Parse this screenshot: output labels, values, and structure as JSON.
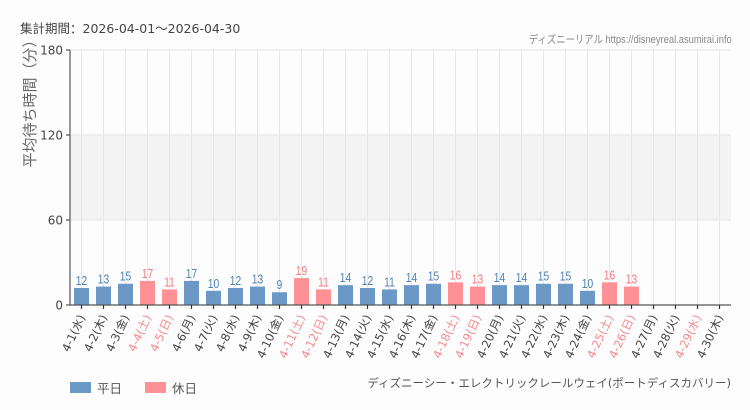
{
  "header": {
    "period": "集計期間：2026-04-01〜2026-04-30",
    "source": "ディズニーリアル https://disneyreal.asumirai.info"
  },
  "colors": {
    "weekday": "#6b98c4",
    "holiday": "#fd9196",
    "weekday_label": "#5083b5",
    "holiday_label": "#f57a80",
    "holiday_tick": "#f58a8f",
    "band": "#f4f4f4"
  },
  "legend": {
    "weekday": "平日",
    "holiday": "休日"
  },
  "attraction": "ディズニーシー・エレクトリックレールウェイ(ポートディスカバリー)",
  "chart_data": {
    "type": "bar",
    "title": "",
    "xlabel": "",
    "ylabel": "平均待ち時間（分）",
    "ylim": [
      0,
      180
    ],
    "yticks": [
      0,
      60,
      120,
      180
    ],
    "grid": true,
    "legend_position": "bottom-left",
    "categories": [
      "4-1(水)",
      "4-2(木)",
      "4-3(金)",
      "4-4(土)",
      "4-5(日)",
      "4-6(月)",
      "4-7(火)",
      "4-8(水)",
      "4-9(木)",
      "4-10(金)",
      "4-11(土)",
      "4-12(日)",
      "4-13(月)",
      "4-14(火)",
      "4-15(水)",
      "4-16(木)",
      "4-17(金)",
      "4-18(土)",
      "4-19(日)",
      "4-20(月)",
      "4-21(火)",
      "4-22(水)",
      "4-23(木)",
      "4-24(金)",
      "4-25(土)",
      "4-26(日)",
      "4-27(月)",
      "4-28(火)",
      "4-29(水)",
      "4-30(木)"
    ],
    "values": [
      12,
      13,
      15,
      17,
      11,
      17,
      10,
      12,
      13,
      9,
      19,
      11,
      14,
      12,
      11,
      14,
      15,
      16,
      13,
      14,
      14,
      15,
      15,
      10,
      16,
      13,
      null,
      null,
      null,
      null
    ],
    "day_type": [
      "weekday",
      "weekday",
      "weekday",
      "holiday",
      "holiday",
      "weekday",
      "weekday",
      "weekday",
      "weekday",
      "weekday",
      "holiday",
      "holiday",
      "weekday",
      "weekday",
      "weekday",
      "weekday",
      "weekday",
      "holiday",
      "holiday",
      "weekday",
      "weekday",
      "weekday",
      "weekday",
      "weekday",
      "holiday",
      "holiday",
      "weekday",
      "weekday",
      "holiday",
      "weekday"
    ],
    "series": [
      {
        "name": "平日",
        "color": "#6b98c4"
      },
      {
        "name": "休日",
        "color": "#fd9196"
      }
    ]
  }
}
